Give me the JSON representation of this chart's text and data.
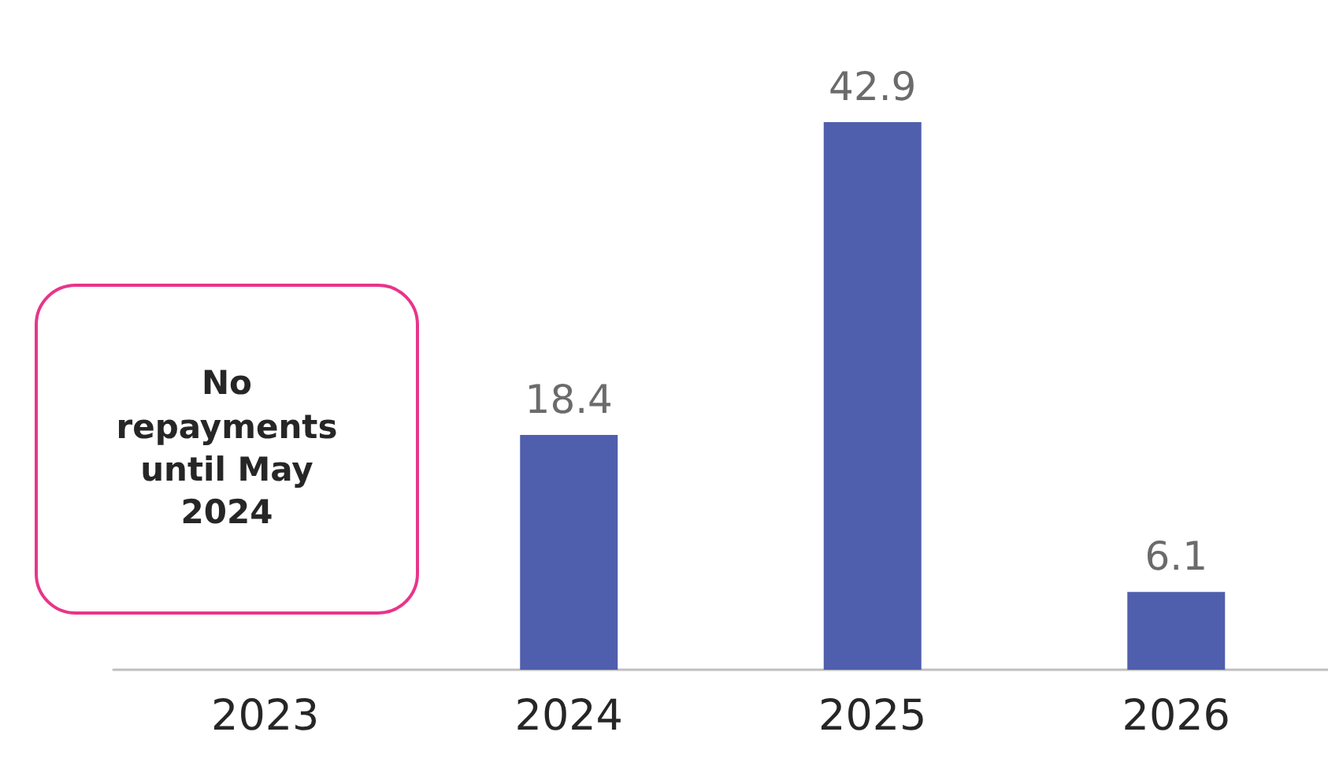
{
  "chart_data": {
    "type": "bar",
    "categories": [
      "2023",
      "2024",
      "2025",
      "2026"
    ],
    "values": [
      null,
      18.4,
      42.9,
      6.1
    ],
    "color": "#4f5fad",
    "data_labels": true,
    "annotations": [
      "No repayments until May 2024"
    ]
  }
}
